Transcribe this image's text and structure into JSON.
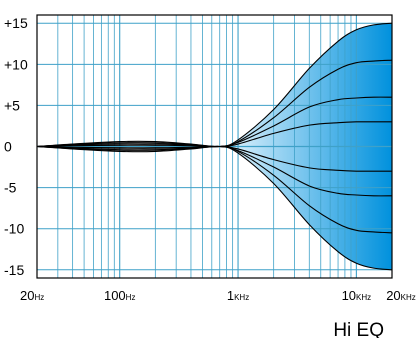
{
  "chart_data": {
    "type": "line",
    "title": "Hi EQ",
    "xlabel": "",
    "ylabel": "",
    "x_scale": "log",
    "xlim": [
      20,
      20000
    ],
    "ylim": [
      -16,
      16
    ],
    "y_ticks": [
      "+15",
      "+10",
      "+5",
      "0",
      "-5",
      "-10",
      "-15"
    ],
    "x_ticks": [
      {
        "value": 20,
        "num": "20",
        "unit": "Hz"
      },
      {
        "value": 100,
        "num": "100",
        "unit": "Hz"
      },
      {
        "value": 1000,
        "num": "1",
        "unit": "KHz"
      },
      {
        "value": 10000,
        "num": "10",
        "unit": "KHz"
      },
      {
        "value": 20000,
        "num": "20",
        "unit": "KHz"
      }
    ],
    "x": [
      20,
      40,
      100,
      200,
      400,
      700,
      1000,
      2000,
      4000,
      7000,
      10000,
      14000,
      20000
    ],
    "series": [
      {
        "gain": 15,
        "values": [
          0,
          0.3,
          0.6,
          0.6,
          0.3,
          0,
          0.8,
          4.5,
          9.5,
          12.8,
          14.2,
          14.8,
          15
        ]
      },
      {
        "gain": 10.5,
        "values": [
          0,
          0.25,
          0.45,
          0.45,
          0.25,
          0,
          0.6,
          3.5,
          7.2,
          9.4,
          10.2,
          10.4,
          10.5
        ]
      },
      {
        "gain": 6,
        "values": [
          0,
          0.2,
          0.3,
          0.3,
          0.2,
          0,
          0.5,
          2.5,
          4.8,
          5.7,
          5.9,
          6,
          6
        ]
      },
      {
        "gain": 3,
        "values": [
          0,
          0.1,
          0.15,
          0.15,
          0.1,
          0,
          0.3,
          1.6,
          2.6,
          2.9,
          3,
          3,
          3
        ]
      },
      {
        "gain": -3,
        "values": [
          0,
          -0.1,
          -0.15,
          -0.15,
          -0.1,
          0,
          -0.3,
          -1.6,
          -2.6,
          -2.9,
          -3,
          -3,
          -3
        ]
      },
      {
        "gain": -6,
        "values": [
          0,
          -0.2,
          -0.3,
          -0.3,
          -0.2,
          0,
          -0.5,
          -2.5,
          -4.8,
          -5.7,
          -5.9,
          -6,
          -6
        ]
      },
      {
        "gain": -10.5,
        "values": [
          0,
          -0.25,
          -0.45,
          -0.45,
          -0.25,
          0,
          -0.6,
          -3.5,
          -7.2,
          -9.4,
          -10.2,
          -10.4,
          -10.5
        ]
      },
      {
        "gain": -15,
        "values": [
          0,
          -0.3,
          -0.6,
          -0.6,
          -0.3,
          0,
          -0.8,
          -4.5,
          -9.5,
          -12.8,
          -14.2,
          -14.8,
          -15
        ]
      }
    ],
    "grid": true,
    "colors": {
      "grid": "#3fa1c8",
      "fill_dark": "#0091dd",
      "fill_light": "#e9f6fd",
      "line": "#000000",
      "border": "#000000"
    }
  }
}
